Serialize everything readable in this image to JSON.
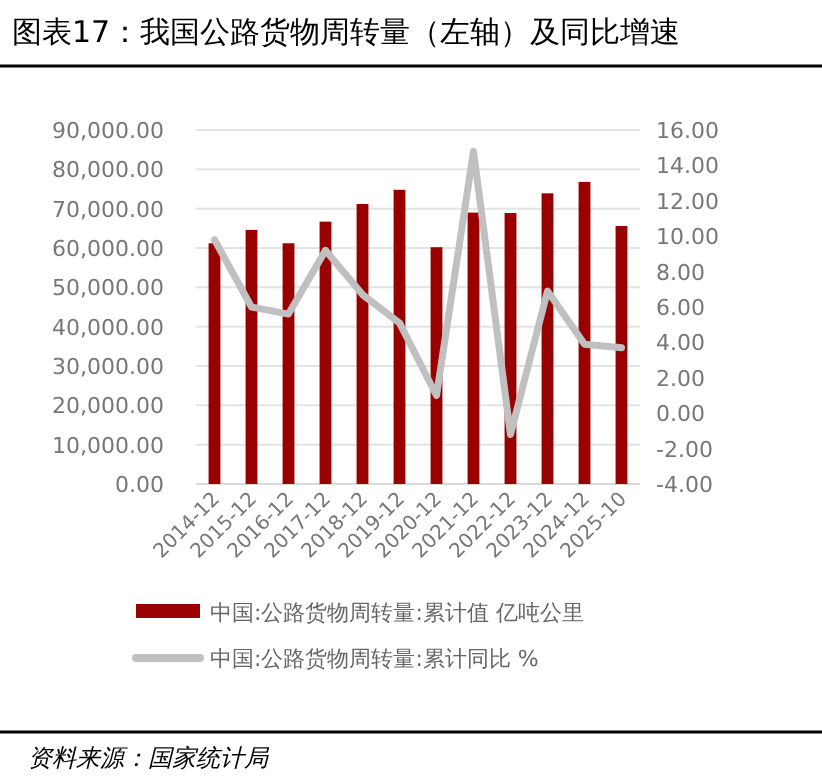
{
  "chart_data": {
    "type": "bar",
    "title": "图表17：我国公路货物周转量（左轴）及同比增速",
    "categories": [
      "2014-12",
      "2015-12",
      "2016-12",
      "2017-12",
      "2018-12",
      "2019-12",
      "2020-12",
      "2021-12",
      "2022-12",
      "2023-12",
      "2024-12",
      "2025-10"
    ],
    "series": [
      {
        "name": "中国:公路货物周转量:累计值 亿吨公里",
        "color": "#990000",
        "values": [
          61200,
          64600,
          61200,
          66700,
          71200,
          74800,
          60200,
          69000,
          68900,
          73900,
          76800,
          65600
        ]
      },
      {
        "name": "中国:公路货物周转量:累计同比 %",
        "type": "line",
        "axis": "y2",
        "color": "#c0c0c0",
        "values": [
          9.8,
          6.0,
          5.6,
          9.2,
          6.7,
          5.1,
          1.0,
          14.8,
          -1.2,
          6.9,
          3.9,
          3.7
        ]
      }
    ],
    "ylim": [
      0,
      90000
    ],
    "yticks": [
      {
        "value": 0,
        "label": "0.00"
      },
      {
        "value": 10000,
        "label": "10,000.00"
      },
      {
        "value": 20000,
        "label": "20,000.00"
      },
      {
        "value": 30000,
        "label": "30,000.00"
      },
      {
        "value": 40000,
        "label": "40,000.00"
      },
      {
        "value": 50000,
        "label": "50,000.00"
      },
      {
        "value": 60000,
        "label": "60,000.00"
      },
      {
        "value": 70000,
        "label": "70,000.00"
      },
      {
        "value": 80000,
        "label": "80,000.00"
      },
      {
        "value": 90000,
        "label": "90,000.00"
      }
    ],
    "y2lim": [
      -4,
      16
    ],
    "y2ticks": [
      {
        "value": -4,
        "label": "-4.00"
      },
      {
        "value": -2,
        "label": "-2.00"
      },
      {
        "value": 0,
        "label": "0.00"
      },
      {
        "value": 2,
        "label": "2.00"
      },
      {
        "value": 4,
        "label": "4.00"
      },
      {
        "value": 6,
        "label": "6.00"
      },
      {
        "value": 8,
        "label": "8.00"
      },
      {
        "value": 10,
        "label": "10.00"
      },
      {
        "value": 12,
        "label": "12.00"
      },
      {
        "value": 14,
        "label": "14.00"
      },
      {
        "value": 16,
        "label": "16.00"
      }
    ],
    "grid": "y",
    "legend": "bottom",
    "annotations": [
      "资料来源：国家统计局"
    ]
  }
}
